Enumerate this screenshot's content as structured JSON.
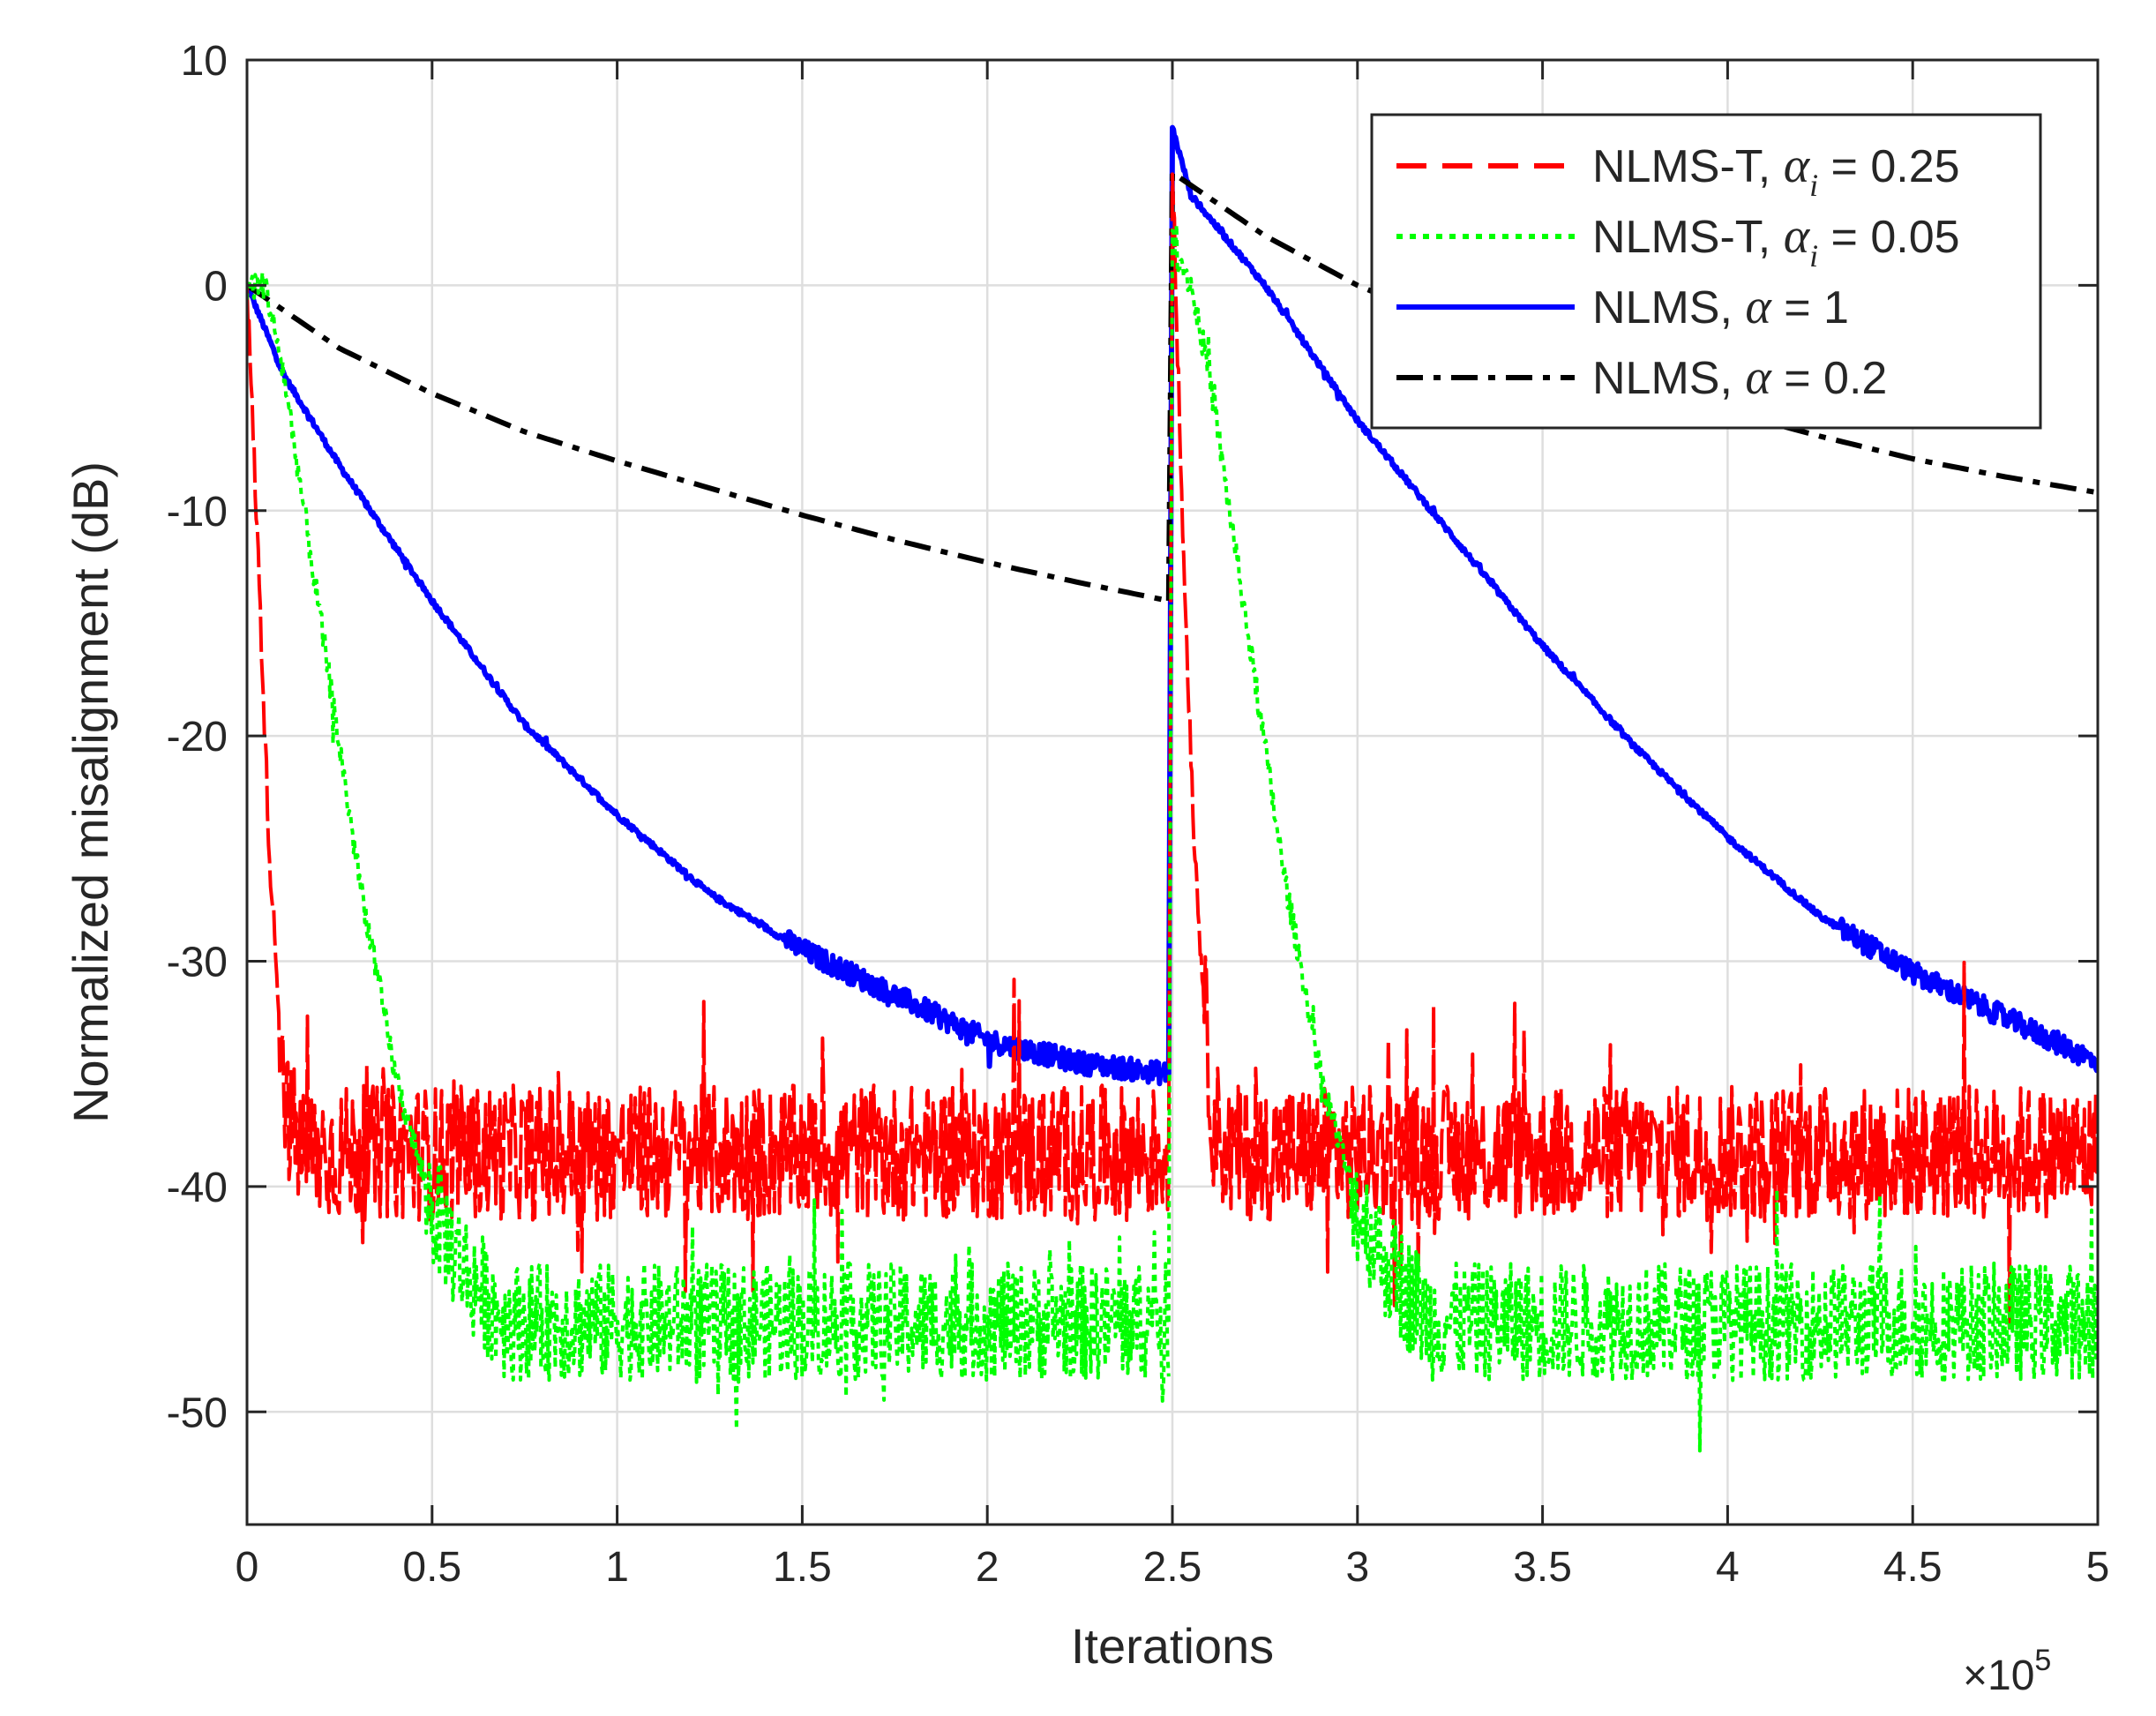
{
  "chart_data": {
    "type": "line",
    "title": "",
    "xlabel": "Iterations",
    "ylabel": "Normalized misalignment (dB)",
    "x_multiplier_label": "×10",
    "x_multiplier_exponent": "5",
    "xlim": [
      0,
      5
    ],
    "ylim": [
      -55,
      10
    ],
    "grid": true,
    "legend_position": "top-right",
    "x_ticks": [
      0,
      0.5,
      1,
      1.5,
      2,
      2.5,
      3,
      3.5,
      4,
      4.5,
      5
    ],
    "x_tick_labels": [
      "0",
      "0.5",
      "1",
      "1.5",
      "2",
      "2.5",
      "3",
      "3.5",
      "4",
      "4.5",
      "5"
    ],
    "y_ticks": [
      10,
      0,
      -10,
      -20,
      -30,
      -40,
      -50
    ],
    "y_tick_labels": [
      "10",
      "0",
      "-10",
      "-20",
      "-30",
      "-40",
      "-50"
    ],
    "series": [
      {
        "name": "NLMS-T, α_i = 0.25",
        "legend_prefix": "NLMS-T, ",
        "legend_symbol": "α",
        "legend_subscript": "i",
        "legend_suffix": " = 0.25",
        "color": "#ff0000",
        "style": "dashed",
        "noise_amplitude": 3.0,
        "segments": [
          [
            [
              0,
              0
            ],
            [
              0.03,
              -12
            ],
            [
              0.06,
              -25
            ],
            [
              0.09,
              -33
            ],
            [
              0.11,
              -37
            ],
            [
              0.15,
              -38.5
            ],
            [
              0.5,
              -38.5
            ],
            [
              1.0,
              -38.5
            ],
            [
              1.5,
              -38.5
            ],
            [
              2.0,
              -38.5
            ],
            [
              2.49,
              -38.5
            ]
          ],
          [
            [
              2.5,
              5
            ],
            [
              2.53,
              -12
            ],
            [
              2.56,
              -25
            ],
            [
              2.59,
              -33
            ],
            [
              2.61,
              -37
            ],
            [
              2.65,
              -38.5
            ],
            [
              3.0,
              -38.5
            ],
            [
              3.5,
              -38.5
            ],
            [
              4.0,
              -38.5
            ],
            [
              4.5,
              -38.5
            ],
            [
              5.0,
              -38.5
            ]
          ]
        ]
      },
      {
        "name": "NLMS-T, α_i = 0.05",
        "legend_prefix": "NLMS-T, ",
        "legend_symbol": "α",
        "legend_subscript": "i",
        "legend_suffix": " = 0.05",
        "color": "#00ff00",
        "style": "dotted",
        "noise_amplitude": 2.6,
        "segments": [
          [
            [
              0,
              0
            ],
            [
              0.05,
              0
            ],
            [
              0.1,
              -4
            ],
            [
              0.2,
              -15
            ],
            [
              0.3,
              -26
            ],
            [
              0.4,
              -35
            ],
            [
              0.5,
              -41
            ],
            [
              0.6,
              -44
            ],
            [
              0.7,
              -46
            ],
            [
              0.8,
              -46
            ],
            [
              1.5,
              -46
            ],
            [
              2.0,
              -46
            ],
            [
              2.49,
              -46
            ]
          ],
          [
            [
              2.5,
              2
            ],
            [
              2.55,
              0
            ],
            [
              2.6,
              -4
            ],
            [
              2.7,
              -15
            ],
            [
              2.8,
              -26
            ],
            [
              2.9,
              -35
            ],
            [
              3.0,
              -41
            ],
            [
              3.1,
              -44
            ],
            [
              3.2,
              -46
            ],
            [
              3.3,
              -46
            ],
            [
              4.0,
              -46
            ],
            [
              4.5,
              -46
            ],
            [
              5.0,
              -46
            ]
          ]
        ]
      },
      {
        "name": "NLMS, α = 1",
        "legend_prefix": "NLMS, ",
        "legend_symbol": "α",
        "legend_subscript": "",
        "legend_suffix": " = 1",
        "color": "#0000ff",
        "style": "solid",
        "noise_amplitude": 0.5,
        "segments": [
          [
            [
              0,
              0
            ],
            [
              0.1,
              -4
            ],
            [
              0.25,
              -8
            ],
            [
              0.5,
              -14
            ],
            [
              0.75,
              -19.5
            ],
            [
              1.0,
              -23.5
            ],
            [
              1.25,
              -27
            ],
            [
              1.5,
              -29.5
            ],
            [
              1.75,
              -31.5
            ],
            [
              2.0,
              -33.5
            ],
            [
              2.25,
              -34.5
            ],
            [
              2.49,
              -35
            ]
          ],
          [
            [
              2.5,
              7
            ],
            [
              2.55,
              4
            ],
            [
              2.75,
              0
            ],
            [
              3.0,
              -6
            ],
            [
              3.25,
              -11
            ],
            [
              3.5,
              -16
            ],
            [
              3.75,
              -20.5
            ],
            [
              4.0,
              -24.5
            ],
            [
              4.25,
              -28
            ],
            [
              4.5,
              -30.5
            ],
            [
              4.75,
              -32.5
            ],
            [
              5.0,
              -34.5
            ]
          ]
        ]
      },
      {
        "name": "NLMS, α = 0.2",
        "legend_prefix": "NLMS, ",
        "legend_symbol": "α",
        "legend_subscript": "",
        "legend_suffix": " = 0.2",
        "color": "#000000",
        "style": "dashdot",
        "noise_amplitude": 0,
        "segments": [
          [
            [
              0,
              0
            ],
            [
              0.25,
              -2.8
            ],
            [
              0.5,
              -4.8
            ],
            [
              0.75,
              -6.5
            ],
            [
              1.0,
              -7.8
            ],
            [
              1.25,
              -9
            ],
            [
              1.5,
              -10.2
            ],
            [
              1.75,
              -11.3
            ],
            [
              2.0,
              -12.3
            ],
            [
              2.25,
              -13.2
            ],
            [
              2.49,
              -14
            ]
          ],
          [
            [
              2.5,
              5
            ],
            [
              2.75,
              2.2
            ],
            [
              3.0,
              0
            ],
            [
              3.25,
              -1.7
            ],
            [
              3.5,
              -3.1
            ],
            [
              3.75,
              -4.4
            ],
            [
              4.0,
              -5.6
            ],
            [
              4.25,
              -6.7
            ],
            [
              4.5,
              -7.7
            ],
            [
              4.75,
              -8.5
            ],
            [
              5.0,
              -9.2
            ]
          ]
        ]
      }
    ]
  }
}
